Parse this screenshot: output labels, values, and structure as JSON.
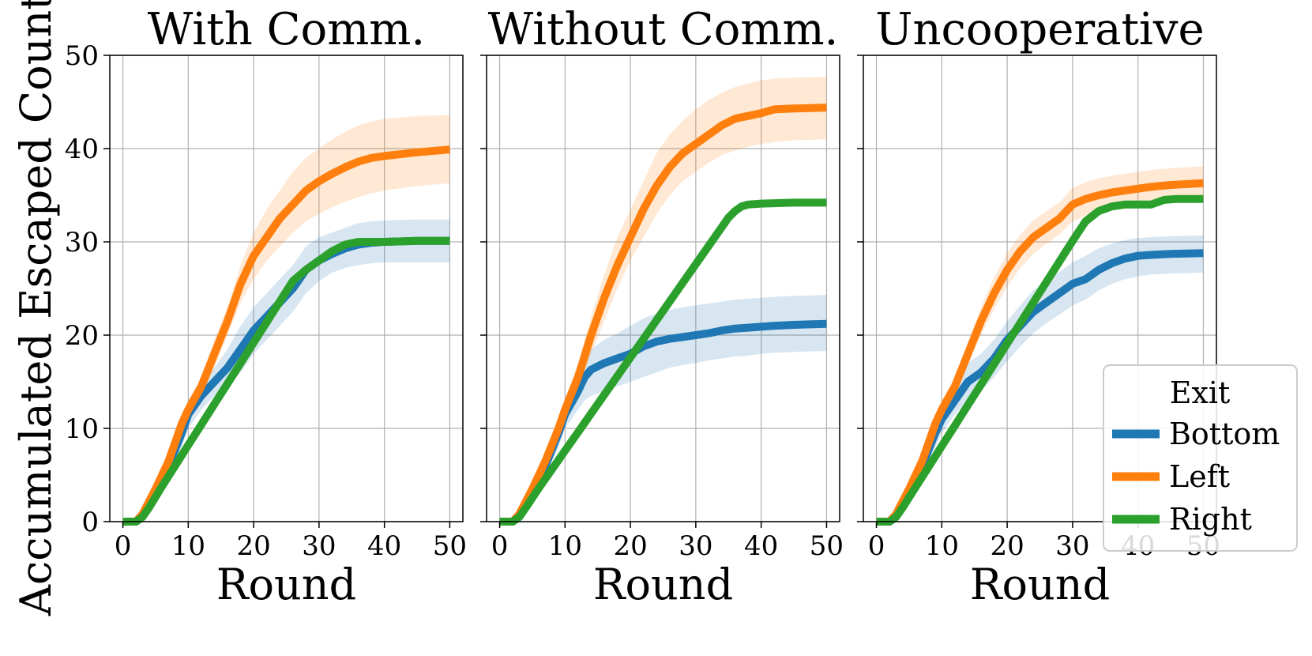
{
  "figure": {
    "ylabel": "Accumulated Escaped Count",
    "xlabel": "Round"
  },
  "legend": {
    "title": "Exit",
    "entries": [
      "Bottom",
      "Left",
      "Right"
    ]
  },
  "colors": {
    "Bottom": "#1f77b4",
    "Left": "#ff7f0e",
    "Right": "#2ca02c"
  },
  "chart_data": [
    {
      "type": "line",
      "title": "With Comm.",
      "xlabel": "Round",
      "ylabel": "Accumulated Escaped Count",
      "xlim": [
        -2,
        52
      ],
      "ylim": [
        0,
        50
      ],
      "xticks": [
        0,
        10,
        20,
        30,
        40,
        50
      ],
      "yticks": [
        0,
        10,
        20,
        30,
        40,
        50
      ],
      "grid": true,
      "series": [
        {
          "name": "Bottom",
          "x": [
            0,
            2,
            3,
            5,
            7,
            9,
            10,
            12,
            14,
            16,
            18,
            20,
            22,
            24,
            26,
            28,
            30,
            32,
            34,
            36,
            38,
            40,
            45,
            50
          ],
          "y": [
            0,
            0,
            0.5,
            3,
            6,
            9.5,
            11.5,
            13.5,
            15,
            16.5,
            18.5,
            20.5,
            22,
            23.5,
            25,
            27,
            28,
            28.7,
            29.3,
            29.7,
            29.9,
            30,
            30.1,
            30.1
          ],
          "lower": [
            0,
            0,
            0.2,
            2,
            5,
            8,
            10,
            12,
            13.5,
            14.5,
            16,
            18,
            19.5,
            21,
            22.5,
            24.5,
            25.8,
            26.7,
            27.2,
            27.5,
            27.7,
            27.8,
            27.8,
            27.8
          ],
          "upper": [
            0,
            0.2,
            1,
            4,
            7,
            11,
            13,
            15,
            16.5,
            18.5,
            21,
            23,
            24.5,
            26,
            27.5,
            29.5,
            30.5,
            31,
            31.5,
            32,
            32.2,
            32.3,
            32.4,
            32.4
          ]
        },
        {
          "name": "Left",
          "x": [
            0,
            2,
            3,
            5,
            7,
            9,
            10,
            12,
            14,
            16,
            18,
            20,
            22,
            24,
            26,
            28,
            30,
            32,
            34,
            36,
            38,
            40,
            45,
            50
          ],
          "y": [
            0,
            0,
            0.8,
            3.5,
            6.5,
            10.5,
            12,
            14.5,
            18,
            21.5,
            25.5,
            28.5,
            30.5,
            32.5,
            34,
            35.5,
            36.5,
            37.3,
            38,
            38.6,
            39,
            39.2,
            39.6,
            39.9
          ],
          "lower": [
            0,
            0,
            0.5,
            2.8,
            5.8,
            9.5,
            11,
            13.5,
            16.5,
            20,
            23.5,
            26,
            28,
            29.5,
            31,
            32.2,
            33,
            33.7,
            34.3,
            34.8,
            35.2,
            35.5,
            36,
            36.3
          ],
          "upper": [
            0,
            0.2,
            1.2,
            4.2,
            7.2,
            11.5,
            13,
            15.5,
            19.5,
            23,
            27.5,
            31,
            33.5,
            35.5,
            37.5,
            39,
            40,
            41,
            41.8,
            42.5,
            42.9,
            43.2,
            43.5,
            43.6
          ]
        },
        {
          "name": "Right",
          "x": [
            0,
            2,
            3,
            4,
            6,
            8,
            10,
            12,
            14,
            16,
            18,
            20,
            22,
            24,
            26,
            28,
            30,
            32,
            34,
            36,
            38,
            40,
            45,
            50
          ],
          "y": [
            0,
            0,
            0.5,
            1.5,
            3.8,
            6,
            8.2,
            10.4,
            12.6,
            14.8,
            17,
            19.2,
            21.4,
            23.6,
            25.8,
            27,
            28,
            29,
            29.7,
            30,
            30,
            30,
            30.1,
            30.1
          ]
        }
      ]
    },
    {
      "type": "line",
      "title": "Without Comm.",
      "xlabel": "Round",
      "xlim": [
        -2,
        52
      ],
      "ylim": [
        0,
        50
      ],
      "xticks": [
        0,
        10,
        20,
        30,
        40,
        50
      ],
      "yticks": [
        0,
        10,
        20,
        30,
        40,
        50
      ],
      "grid": true,
      "series": [
        {
          "name": "Bottom",
          "x": [
            0,
            2,
            3,
            5,
            7,
            9,
            10,
            12,
            13,
            14,
            16,
            18,
            20,
            22,
            24,
            26,
            28,
            30,
            32,
            34,
            36,
            38,
            40,
            42,
            45,
            50
          ],
          "y": [
            0,
            0,
            0.5,
            3,
            6,
            9.5,
            11.5,
            14,
            15.5,
            16.3,
            17,
            17.5,
            18,
            18.8,
            19.3,
            19.6,
            19.8,
            20,
            20.2,
            20.5,
            20.7,
            20.8,
            20.9,
            21,
            21.1,
            21.2
          ],
          "lower": [
            0,
            0,
            0.2,
            2,
            5,
            8,
            10,
            12,
            13,
            13.5,
            14,
            14.5,
            15,
            15.5,
            16,
            16.5,
            16.8,
            17,
            17.3,
            17.5,
            17.7,
            17.8,
            18,
            18.1,
            18.2,
            18.3
          ],
          "upper": [
            0,
            0.2,
            1,
            4,
            7,
            11,
            13,
            16,
            17.5,
            18.5,
            19.5,
            20.2,
            21,
            21.8,
            22.3,
            22.7,
            23,
            23.2,
            23.4,
            23.6,
            23.8,
            23.9,
            24,
            24.1,
            24.2,
            24.3
          ]
        },
        {
          "name": "Left",
          "x": [
            0,
            2,
            3,
            5,
            7,
            9,
            10,
            12,
            14,
            16,
            18,
            20,
            22,
            24,
            26,
            28,
            30,
            32,
            34,
            36,
            38,
            40,
            42,
            45,
            50
          ],
          "y": [
            0,
            0,
            0.8,
            3.5,
            6.5,
            10,
            12,
            15.5,
            20,
            24,
            27.5,
            30.5,
            33.5,
            36,
            38,
            39.5,
            40.5,
            41.5,
            42.5,
            43.2,
            43.5,
            43.8,
            44.2,
            44.3,
            44.4
          ],
          "lower": [
            0,
            0,
            0.5,
            2.8,
            5.8,
            9.2,
            11,
            14,
            18,
            21.5,
            25,
            28,
            30.5,
            33,
            35,
            36.5,
            37.5,
            38.5,
            39.3,
            39.8,
            40.2,
            40.5,
            40.7,
            40.9,
            41
          ],
          "upper": [
            0,
            0.2,
            1.2,
            4.2,
            7.2,
            11,
            13.2,
            17,
            22,
            26.5,
            30.5,
            33.5,
            36.5,
            39.5,
            41.5,
            43,
            44.2,
            45.2,
            46,
            46.6,
            47,
            47.3,
            47.5,
            47.6,
            47.7
          ]
        },
        {
          "name": "Right",
          "x": [
            0,
            2,
            3,
            4,
            6,
            8,
            10,
            12,
            14,
            16,
            18,
            20,
            22,
            24,
            26,
            28,
            30,
            32,
            34,
            35,
            36,
            37,
            38,
            40,
            45,
            50
          ],
          "y": [
            0,
            0,
            0.5,
            1.5,
            3.6,
            5.6,
            7.6,
            9.6,
            11.6,
            13.6,
            15.6,
            17.6,
            19.6,
            21.6,
            23.6,
            25.6,
            27.6,
            29.6,
            31.6,
            32.6,
            33.3,
            33.8,
            34,
            34.1,
            34.2,
            34.2
          ]
        }
      ]
    },
    {
      "type": "line",
      "title": "Uncooperative",
      "xlabel": "Round",
      "xlim": [
        -2,
        52
      ],
      "ylim": [
        0,
        50
      ],
      "xticks": [
        0,
        10,
        20,
        30,
        40,
        50
      ],
      "yticks": [
        0,
        10,
        20,
        30,
        40,
        50
      ],
      "grid": true,
      "legend": "lower-right",
      "series": [
        {
          "name": "Bottom",
          "x": [
            0,
            2,
            3,
            5,
            7,
            9,
            10,
            12,
            14,
            16,
            18,
            20,
            22,
            24,
            26,
            28,
            30,
            32,
            34,
            36,
            38,
            40,
            42,
            45,
            50
          ],
          "y": [
            0,
            0,
            0.5,
            3,
            6,
            9.5,
            11,
            13,
            15,
            16,
            17.5,
            19.5,
            21,
            22.5,
            23.5,
            24.5,
            25.5,
            26,
            27,
            27.7,
            28.2,
            28.5,
            28.6,
            28.7,
            28.8
          ],
          "lower": [
            0,
            0,
            0.2,
            2,
            5,
            8,
            9.5,
            11.5,
            13,
            14,
            15.5,
            17.2,
            18.8,
            20.2,
            21.3,
            22.2,
            23.2,
            23.8,
            24.8,
            25.5,
            26,
            26.3,
            26.5,
            26.6,
            26.7
          ],
          "upper": [
            0,
            0.2,
            1,
            4,
            7,
            11,
            12.5,
            14.5,
            17,
            18,
            19.5,
            21.5,
            23.2,
            24.8,
            25.8,
            26.8,
            27.8,
            28.5,
            29.3,
            29.8,
            30.2,
            30.4,
            30.5,
            30.6,
            30.7
          ]
        },
        {
          "name": "Left",
          "x": [
            0,
            2,
            3,
            5,
            7,
            9,
            10,
            12,
            14,
            16,
            18,
            20,
            22,
            24,
            26,
            28,
            30,
            32,
            34,
            36,
            38,
            40,
            42,
            45,
            50
          ],
          "y": [
            0,
            0,
            0.8,
            3.5,
            6.5,
            10.5,
            12,
            14.5,
            18,
            21.5,
            24.5,
            27,
            29,
            30.5,
            31.5,
            32.5,
            34,
            34.6,
            35,
            35.3,
            35.5,
            35.7,
            35.9,
            36.1,
            36.3
          ],
          "lower": [
            0,
            0,
            0.5,
            2.8,
            5.8,
            9.5,
            11,
            13.5,
            16.8,
            20,
            22.8,
            25.2,
            27.2,
            28.7,
            29.8,
            30.8,
            32.2,
            32.8,
            33.2,
            33.5,
            33.7,
            33.9,
            34.1,
            34.3,
            34.5
          ],
          "upper": [
            0,
            0.2,
            1.2,
            4.2,
            7.2,
            11.5,
            13,
            15.5,
            19.2,
            23,
            26.2,
            28.8,
            30.8,
            32.3,
            33.3,
            34.2,
            35.8,
            36.4,
            36.8,
            37.1,
            37.3,
            37.5,
            37.7,
            37.9,
            38.1
          ]
        },
        {
          "name": "Right",
          "x": [
            0,
            2,
            3,
            4,
            6,
            8,
            10,
            12,
            14,
            16,
            18,
            20,
            22,
            24,
            26,
            28,
            30,
            32,
            34,
            36,
            38,
            40,
            42,
            44,
            46,
            50
          ],
          "y": [
            0,
            0,
            0.5,
            1.5,
            3.7,
            5.9,
            8.1,
            10.3,
            12.5,
            14.7,
            16.9,
            19.1,
            21.3,
            23.5,
            25.7,
            27.9,
            30.1,
            32.2,
            33.3,
            33.8,
            34,
            34,
            34,
            34.5,
            34.6,
            34.6
          ]
        }
      ]
    }
  ]
}
